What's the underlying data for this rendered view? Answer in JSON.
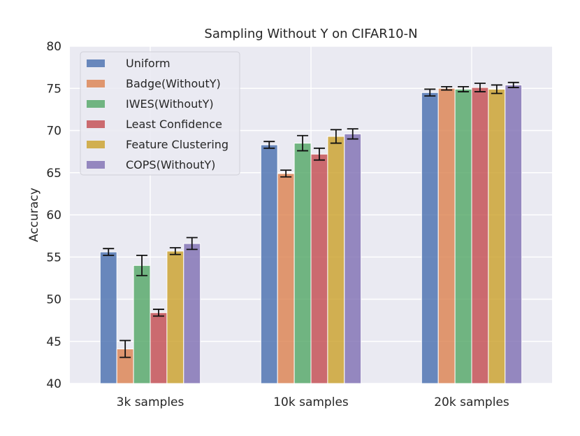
{
  "chart_data": {
    "type": "bar",
    "title": "Sampling Without Y on CIFAR10-N",
    "xlabel": "",
    "ylabel": "Accuracy",
    "ylim": [
      40,
      80
    ],
    "yticks": [
      "40",
      "45",
      "50",
      "55",
      "60",
      "65",
      "70",
      "75",
      "80"
    ],
    "categories": [
      "3k samples",
      "10k samples",
      "20k samples"
    ],
    "grid": true,
    "legend_position": "top-left",
    "series": [
      {
        "name": "Uniform",
        "color": "#4C72B0",
        "values": [
          55.6,
          68.3,
          74.5
        ],
        "errors": [
          0.4,
          0.4,
          0.4
        ]
      },
      {
        "name": "Badge(WithoutY)",
        "color": "#DD8452",
        "values": [
          44.1,
          64.9,
          75.0
        ],
        "errors": [
          1.0,
          0.4,
          0.2
        ]
      },
      {
        "name": "IWES(WithoutY)",
        "color": "#55A868",
        "values": [
          54.0,
          68.5,
          74.9
        ],
        "errors": [
          1.2,
          0.9,
          0.3
        ]
      },
      {
        "name": "Least Confidence",
        "color": "#C44E52",
        "values": [
          48.4,
          67.2,
          75.1
        ],
        "errors": [
          0.4,
          0.7,
          0.5
        ]
      },
      {
        "name": "Feature Clustering",
        "color": "#CCA22D",
        "values": [
          55.7,
          69.3,
          74.9
        ],
        "errors": [
          0.4,
          0.8,
          0.5
        ]
      },
      {
        "name": "COPS(WithoutY)",
        "color": "#8172B3",
        "values": [
          56.6,
          69.6,
          75.4
        ],
        "errors": [
          0.7,
          0.6,
          0.3
        ]
      }
    ]
  }
}
